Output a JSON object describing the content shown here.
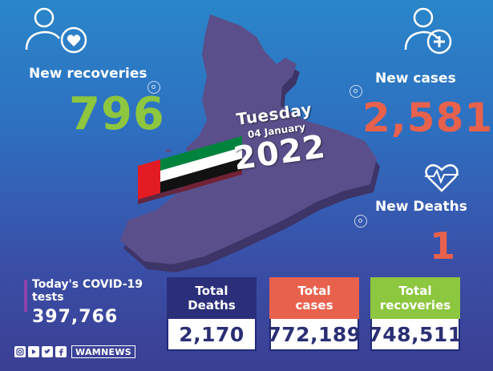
{
  "date": {
    "day": "Tuesday",
    "day_month": "04 January",
    "year": "2022"
  },
  "stats": {
    "recoveries": {
      "label": "New recoveries",
      "value": "796"
    },
    "cases": {
      "label": "New cases",
      "value": "2,581"
    },
    "deaths": {
      "label": "New Deaths",
      "value": "1"
    }
  },
  "tests": {
    "label": "Today's COVID-19 tests",
    "value": "397,766"
  },
  "totals": [
    {
      "label_line1": "Total",
      "label_line2": "Deaths",
      "value": "2,170",
      "color": "#2b2f7a"
    },
    {
      "label_line1": "Total",
      "label_line2": "cases",
      "value": "772,189",
      "color": "#e8614d"
    },
    {
      "label_line1": "Total",
      "label_line2": "recoveries",
      "value": "748,511",
      "color": "#8dc63f"
    }
  ],
  "colors": {
    "recoveries_green": "#8dc63f",
    "cases_red": "#e8614d",
    "map_purple": "#5a4f8a"
  },
  "footer": {
    "icons": [
      "instagram-icon",
      "youtube-icon",
      "twitter-icon",
      "facebook-icon"
    ],
    "handle": "WAMNEWS"
  }
}
